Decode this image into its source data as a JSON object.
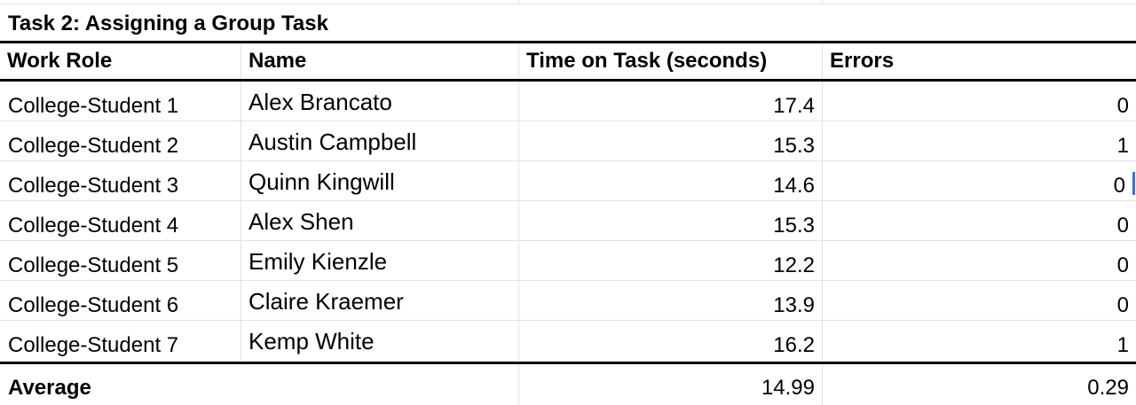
{
  "table": {
    "title": "Task 2: Assigning a Group Task",
    "headers": {
      "work_role": "Work Role",
      "name": "Name",
      "time_on_task": "Time on Task (seconds)",
      "errors": "Errors"
    },
    "rows": [
      {
        "role": "College-Student 1",
        "name": "Alex Brancato",
        "time": "17.4",
        "errors": "0"
      },
      {
        "role": "College-Student 2",
        "name": "Austin Campbell",
        "time": "15.3",
        "errors": "1"
      },
      {
        "role": "College-Student 3",
        "name": "Quinn Kingwill",
        "time": "14.6",
        "errors": "0"
      },
      {
        "role": "College-Student 4",
        "name": "Alex Shen",
        "time": "15.3",
        "errors": "0"
      },
      {
        "role": "College-Student 5",
        "name": "Emily Kienzle",
        "time": "12.2",
        "errors": "0"
      },
      {
        "role": "College-Student 6",
        "name": "Claire Kraemer",
        "time": "13.9",
        "errors": "0"
      },
      {
        "role": "College-Student 7",
        "name": "Kemp White",
        "time": "16.2",
        "errors": "1"
      }
    ],
    "average": {
      "label": "Average",
      "time": "14.99",
      "errors": "0.29"
    }
  },
  "colors": {
    "grid_line": "#e2e2e2",
    "thick_border": "#000000",
    "cursor": "#3a6fd8"
  }
}
